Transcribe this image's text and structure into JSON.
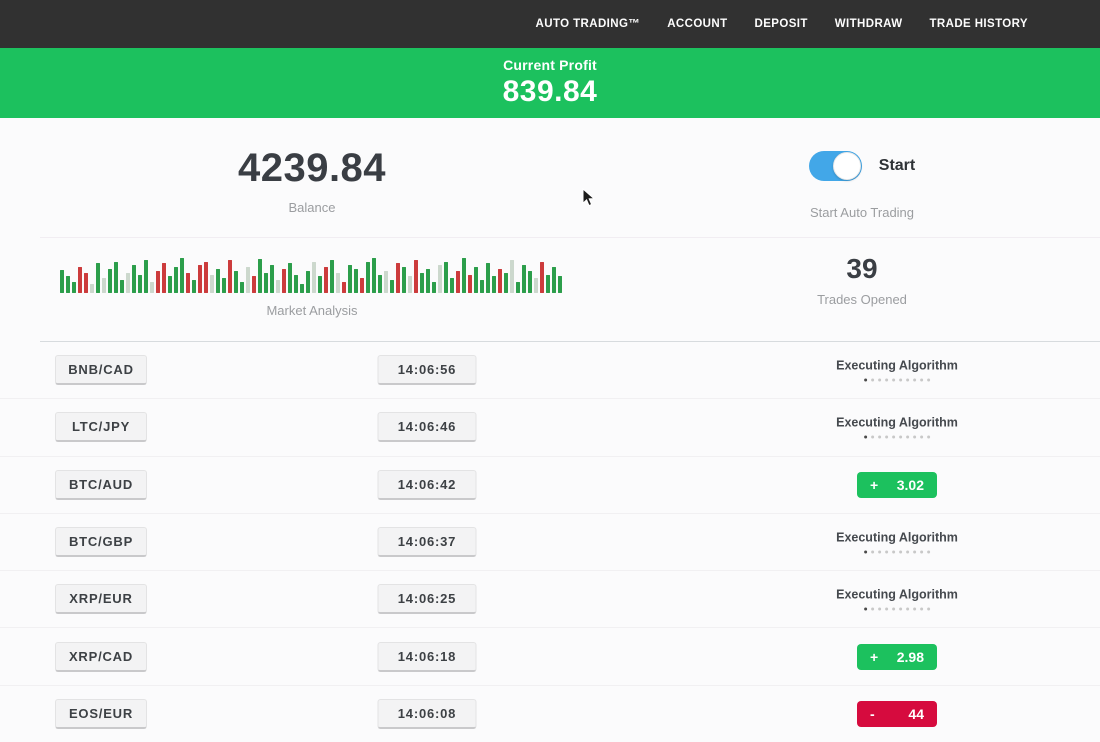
{
  "colors": {
    "green": "#1cc15e",
    "red": "#d60b3e",
    "toggle_blue": "#42a7e8",
    "topbar": "#313131",
    "page_bg": "#fbfbfc"
  },
  "nav": {
    "items": [
      {
        "label": "AUTO TRADING™"
      },
      {
        "label": "ACCOUNT"
      },
      {
        "label": "DEPOSIT"
      },
      {
        "label": "WITHDRAW"
      },
      {
        "label": "TRADE HISTORY"
      }
    ]
  },
  "profit_banner": {
    "label": "Current Profit",
    "value": "839.84"
  },
  "stats": {
    "balance": {
      "value": "4239.84",
      "label": "Balance"
    },
    "auto_trading": {
      "toggle_label": "Start",
      "label": "Start Auto Trading",
      "enabled": true
    },
    "market_analysis": {
      "label": "Market Analysis",
      "bars": [
        [
          62,
          "g"
        ],
        [
          45,
          "g"
        ],
        [
          30,
          "g"
        ],
        [
          70,
          "r"
        ],
        [
          55,
          "r"
        ],
        [
          25,
          "p"
        ],
        [
          80,
          "g"
        ],
        [
          40,
          "p"
        ],
        [
          65,
          "g"
        ],
        [
          85,
          "g"
        ],
        [
          35,
          "g"
        ],
        [
          55,
          "p"
        ],
        [
          75,
          "g"
        ],
        [
          50,
          "g"
        ],
        [
          90,
          "g"
        ],
        [
          30,
          "p"
        ],
        [
          60,
          "r"
        ],
        [
          80,
          "r"
        ],
        [
          45,
          "g"
        ],
        [
          70,
          "g"
        ],
        [
          95,
          "g"
        ],
        [
          55,
          "r"
        ],
        [
          35,
          "g"
        ],
        [
          75,
          "r"
        ],
        [
          85,
          "r"
        ],
        [
          50,
          "p"
        ],
        [
          65,
          "g"
        ],
        [
          40,
          "g"
        ],
        [
          88,
          "r"
        ],
        [
          60,
          "g"
        ],
        [
          30,
          "g"
        ],
        [
          70,
          "p"
        ],
        [
          45,
          "r"
        ],
        [
          92,
          "g"
        ],
        [
          55,
          "g"
        ],
        [
          75,
          "g"
        ],
        [
          35,
          "p"
        ],
        [
          65,
          "r"
        ],
        [
          80,
          "g"
        ],
        [
          50,
          "g"
        ],
        [
          25,
          "g"
        ],
        [
          60,
          "g"
        ],
        [
          85,
          "p"
        ],
        [
          45,
          "g"
        ],
        [
          70,
          "r"
        ],
        [
          90,
          "g"
        ],
        [
          55,
          "p"
        ],
        [
          30,
          "r"
        ],
        [
          75,
          "g"
        ],
        [
          65,
          "g"
        ],
        [
          40,
          "r"
        ],
        [
          85,
          "g"
        ],
        [
          95,
          "g"
        ],
        [
          50,
          "g"
        ],
        [
          60,
          "p"
        ],
        [
          35,
          "g"
        ],
        [
          80,
          "r"
        ],
        [
          70,
          "g"
        ],
        [
          45,
          "p"
        ],
        [
          90,
          "r"
        ],
        [
          55,
          "g"
        ],
        [
          65,
          "g"
        ],
        [
          30,
          "g"
        ],
        [
          75,
          "p"
        ],
        [
          85,
          "g"
        ],
        [
          40,
          "g"
        ],
        [
          60,
          "r"
        ],
        [
          95,
          "g"
        ],
        [
          50,
          "r"
        ],
        [
          70,
          "g"
        ],
        [
          35,
          "g"
        ],
        [
          80,
          "g"
        ],
        [
          45,
          "g"
        ],
        [
          65,
          "r"
        ],
        [
          55,
          "g"
        ],
        [
          90,
          "p"
        ],
        [
          30,
          "g"
        ],
        [
          75,
          "g"
        ],
        [
          60,
          "g"
        ],
        [
          40,
          "p"
        ],
        [
          85,
          "r"
        ],
        [
          50,
          "g"
        ],
        [
          70,
          "g"
        ],
        [
          45,
          "g"
        ]
      ]
    },
    "trades_opened": {
      "value": "39",
      "label": "Trades Opened"
    }
  },
  "statuses": {
    "executing": {
      "label": "Executing Algorithm",
      "dots": 10
    }
  },
  "trades": [
    {
      "pair": "BNB/CAD",
      "time": "14:06:56",
      "status": "executing",
      "status_label": "Executing Algorithm"
    },
    {
      "pair": "LTC/JPY",
      "time": "14:06:46",
      "status": "executing",
      "status_label": "Executing Algorithm"
    },
    {
      "pair": "BTC/AUD",
      "time": "14:06:42",
      "status": "profit",
      "sign": "+",
      "value": "3.02"
    },
    {
      "pair": "BTC/GBP",
      "time": "14:06:37",
      "status": "executing",
      "status_label": "Executing Algorithm"
    },
    {
      "pair": "XRP/EUR",
      "time": "14:06:25",
      "status": "executing",
      "status_label": "Executing Algorithm"
    },
    {
      "pair": "XRP/CAD",
      "time": "14:06:18",
      "status": "profit",
      "sign": "+",
      "value": "2.98"
    },
    {
      "pair": "EOS/EUR",
      "time": "14:06:08",
      "status": "loss",
      "sign": "-",
      "value": "44"
    }
  ]
}
